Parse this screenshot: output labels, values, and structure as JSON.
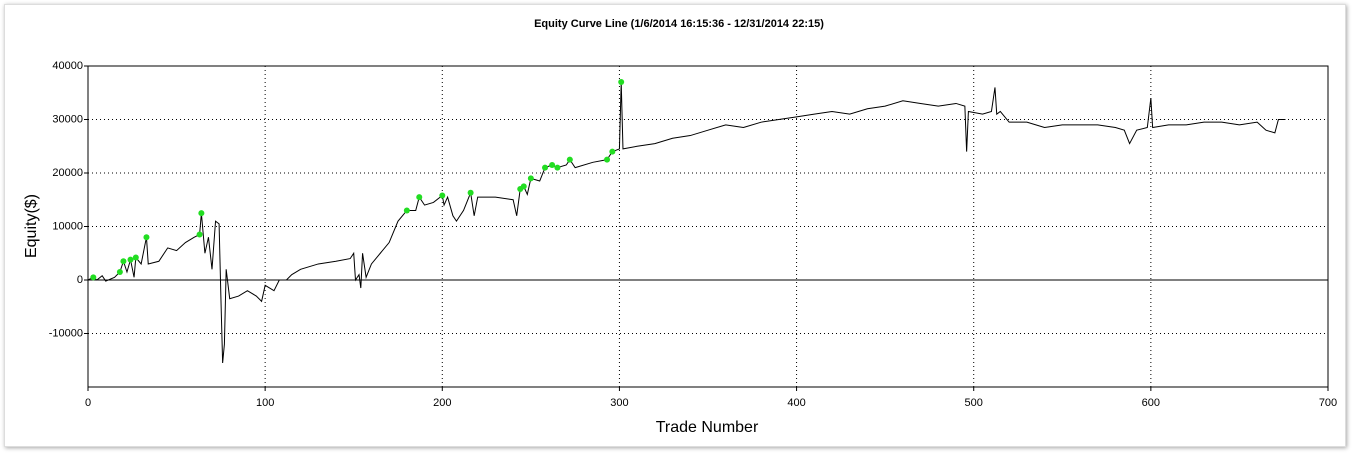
{
  "chart_data": {
    "type": "line",
    "title": "Equity Curve Line (1/6/2014 16:15:36 - 12/31/2014 22:15)",
    "x_label": "Trade Number",
    "y_label": "Equity($)",
    "xlim": [
      0,
      700
    ],
    "xticks": [
      0,
      100,
      200,
      300,
      400,
      500,
      600,
      700
    ],
    "ylim": [
      -20000,
      40000
    ],
    "yticks": [
      -10000,
      0,
      10000,
      20000,
      30000,
      40000
    ],
    "grid": true,
    "color": "#000000",
    "x": [
      0,
      3,
      5,
      8,
      10,
      15,
      18,
      20,
      22,
      24,
      26,
      27,
      30,
      33,
      34,
      40,
      45,
      50,
      55,
      60,
      63,
      64,
      66,
      68,
      70,
      72,
      74,
      75,
      76,
      77,
      78,
      80,
      85,
      90,
      95,
      98,
      100,
      105,
      108,
      112,
      115,
      120,
      130,
      140,
      148,
      150,
      151,
      153,
      154,
      155,
      157,
      160,
      165,
      170,
      175,
      180,
      185,
      187,
      190,
      195,
      200,
      201,
      203,
      206,
      208,
      212,
      216,
      218,
      220,
      230,
      240,
      242,
      244,
      246,
      248,
      250,
      255,
      258,
      262,
      265,
      270,
      272,
      275,
      285,
      293,
      296,
      300,
      301,
      302,
      310,
      320,
      330,
      340,
      350,
      360,
      370,
      380,
      390,
      400,
      410,
      420,
      430,
      440,
      450,
      460,
      470,
      480,
      490,
      495,
      496,
      497,
      505,
      510,
      512,
      513,
      515,
      520,
      530,
      540,
      550,
      560,
      570,
      580,
      585,
      588,
      592,
      598,
      600,
      601,
      610,
      620,
      630,
      640,
      650,
      660,
      665,
      670,
      672,
      676
    ],
    "values": [
      0,
      500,
      0,
      800,
      -200,
      500,
      1500,
      3500,
      1500,
      3800,
      500,
      4200,
      3000,
      8000,
      3000,
      3500,
      6000,
      5500,
      7000,
      8000,
      8500,
      12500,
      5000,
      8000,
      2000,
      11000,
      10500,
      -3000,
      -15500,
      -12000,
      2000,
      -3500,
      -3000,
      -2000,
      -3000,
      -4000,
      -1000,
      -2000,
      0,
      0,
      1000,
      2000,
      3000,
      3500,
      4000,
      5000,
      0,
      1000,
      -1500,
      5000,
      500,
      3000,
      5000,
      7000,
      11000,
      13000,
      13000,
      15500,
      14000,
      14500,
      15800,
      14000,
      15500,
      12000,
      11000,
      13000,
      16300,
      12000,
      15500,
      15500,
      15000,
      12000,
      17000,
      17500,
      16000,
      19000,
      18500,
      21000,
      21500,
      21000,
      21500,
      22500,
      21000,
      22000,
      22500,
      24000,
      24500,
      37000,
      24500,
      25000,
      25500,
      26500,
      27000,
      28000,
      29000,
      28500,
      29500,
      30000,
      30500,
      31000,
      31500,
      31000,
      32000,
      32500,
      33500,
      33000,
      32500,
      33000,
      32500,
      24000,
      31500,
      31000,
      31500,
      36000,
      31000,
      31500,
      29500,
      29500,
      28500,
      29000,
      29000,
      29000,
      28500,
      28000,
      25500,
      28000,
      28500,
      34000,
      28500,
      29000,
      29000,
      29500,
      29500,
      29000,
      29500,
      28000,
      27500,
      30000,
      30000
    ],
    "markers": {
      "color": "#22dd22",
      "x": [
        3,
        18,
        20,
        24,
        27,
        33,
        63,
        64,
        180,
        187,
        200,
        216,
        244,
        246,
        250,
        258,
        262,
        265,
        272,
        293,
        296,
        301
      ],
      "values": [
        500,
        1500,
        3500,
        3800,
        4200,
        8000,
        8500,
        12500,
        13000,
        15500,
        15800,
        16300,
        17000,
        17500,
        19000,
        21000,
        21500,
        21000,
        22500,
        22500,
        24000,
        37000
      ]
    }
  }
}
